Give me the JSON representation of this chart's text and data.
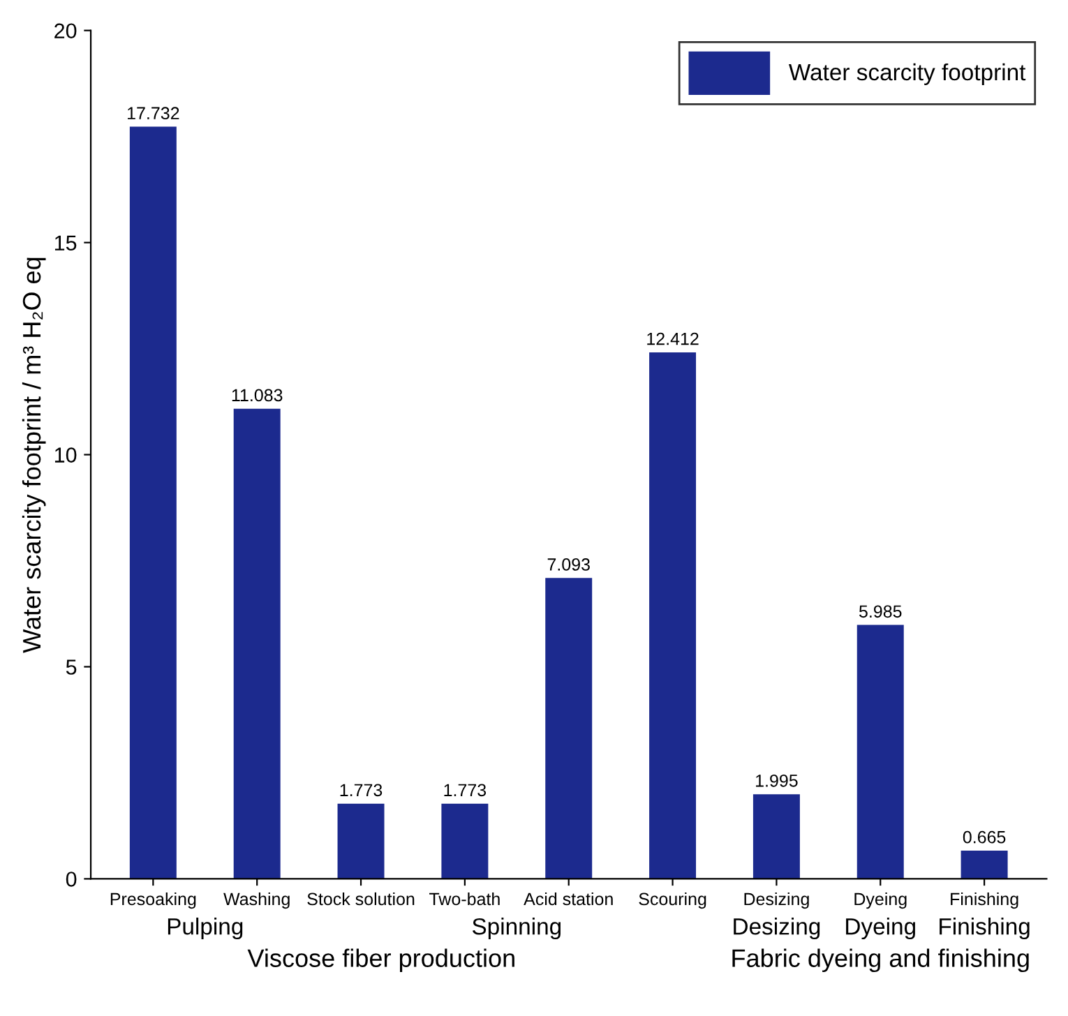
{
  "chart_data": {
    "type": "bar",
    "ylabel": "Water scarcity footprint / m³ H₂O eq",
    "categories": [
      "Presoaking",
      "Washing",
      "Stock solution",
      "Two-bath",
      "Acid station",
      "Scouring",
      "Desizing",
      "Dyeing",
      "Finishing"
    ],
    "series": [
      {
        "name": "Water scarcity footprint",
        "color": "#1c2a8e",
        "values": [
          17.732,
          11.083,
          1.773,
          1.773,
          7.093,
          12.412,
          1.995,
          5.985,
          0.665
        ]
      }
    ],
    "data_labels": true,
    "ylim": [
      0,
      20
    ],
    "yticks": [
      0,
      5,
      10,
      15,
      20
    ],
    "legend": "top right",
    "grid": false,
    "annotations": [
      "Pulping",
      "Spinning",
      "Desizing",
      "Dyeing",
      "Finishing",
      "Viscose fiber production",
      "Fabric dyeing and finishing"
    ]
  }
}
